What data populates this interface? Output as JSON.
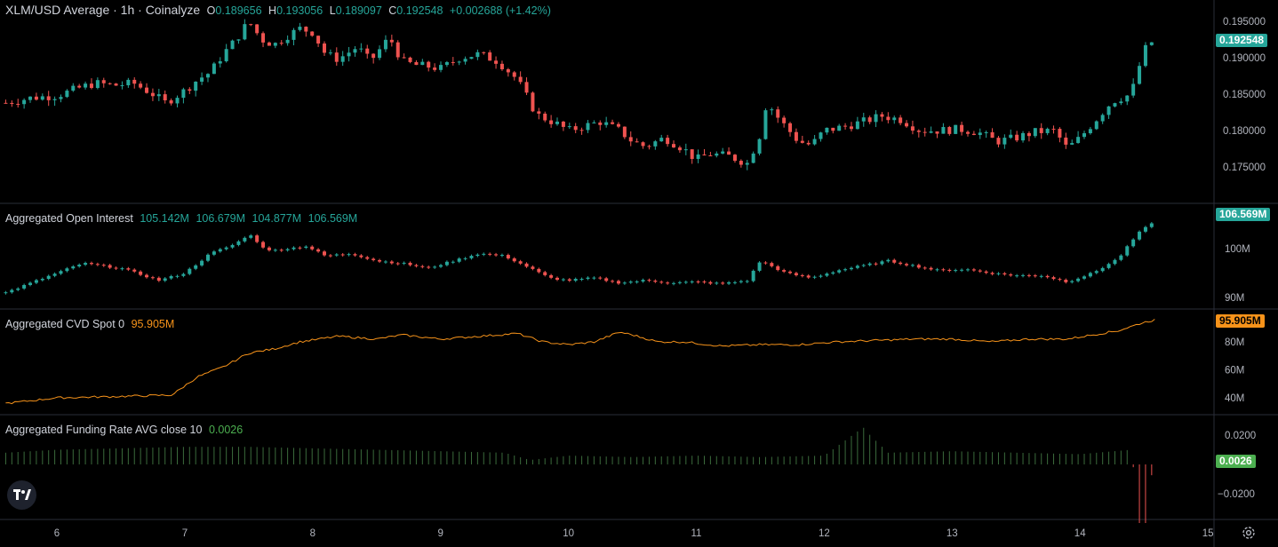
{
  "legend": {
    "main": {
      "title": "XLM/USD Average · 1h · Coinalyze",
      "o_label": "O",
      "o_value": "0.189656",
      "h_label": "H",
      "h_value": "0.193056",
      "l_label": "L",
      "l_value": "0.189097",
      "c_label": "C",
      "c_value": "0.192548",
      "change": "+0.002688 (+1.42%)"
    },
    "oi": {
      "title": "Aggregated Open Interest",
      "v1": "105.142M",
      "v2": "106.679M",
      "v3": "104.877M",
      "v4": "106.569M"
    },
    "cvd": {
      "title": "Aggregated CVD Spot 0",
      "value": "95.905M"
    },
    "funding": {
      "title": "Aggregated Funding Rate AVG close 10",
      "value": "0.0026"
    }
  },
  "badges": {
    "price": "0.192548",
    "oi": "106.569M",
    "cvd": "95.905M",
    "funding": "0.0026"
  },
  "colors": {
    "up": "#26a69a",
    "down": "#ef5350",
    "cvd": "#f7931a",
    "funding_up": "#4caf50",
    "funding_down": "#ef5350",
    "background": "#000000",
    "separator": "#2a2e39"
  },
  "icons": {
    "logo": "tradingview-logo-icon",
    "settings": "gear-icon"
  },
  "chart_data": [
    {
      "type": "candlestick",
      "title": "XLM/USD Average · 1h · Coinalyze",
      "x_ticks": [
        "6",
        "7",
        "8",
        "9",
        "10",
        "11",
        "12",
        "13",
        "14",
        "15"
      ],
      "y_ticks": [
        "0.195000",
        "0.190000",
        "0.185000",
        "0.180000",
        "0.175000"
      ],
      "ylim": [
        0.1715,
        0.1968
      ],
      "series_close": [
        [
          5.6,
          0.1838
        ],
        [
          5.8,
          0.1845
        ],
        [
          6.0,
          0.1848
        ],
        [
          6.2,
          0.186
        ],
        [
          6.3,
          0.1865
        ],
        [
          6.45,
          0.1862
        ],
        [
          6.6,
          0.1865
        ],
        [
          6.75,
          0.185
        ],
        [
          6.85,
          0.1838
        ],
        [
          7.0,
          0.1855
        ],
        [
          7.1,
          0.187
        ],
        [
          7.2,
          0.188
        ],
        [
          7.3,
          0.1905
        ],
        [
          7.4,
          0.1925
        ],
        [
          7.5,
          0.195
        ],
        [
          7.6,
          0.1925
        ],
        [
          7.7,
          0.1918
        ],
        [
          7.8,
          0.193
        ],
        [
          7.9,
          0.194
        ],
        [
          8.0,
          0.1935
        ],
        [
          8.1,
          0.1905
        ],
        [
          8.2,
          0.1898
        ],
        [
          8.35,
          0.1915
        ],
        [
          8.45,
          0.1895
        ],
        [
          8.6,
          0.1928
        ],
        [
          8.7,
          0.1895
        ],
        [
          8.8,
          0.189
        ],
        [
          8.9,
          0.1888
        ],
        [
          9.0,
          0.1885
        ],
        [
          9.15,
          0.19
        ],
        [
          9.3,
          0.1905
        ],
        [
          9.45,
          0.1895
        ],
        [
          9.6,
          0.187
        ],
        [
          9.75,
          0.1822
        ],
        [
          9.9,
          0.181
        ],
        [
          10.0,
          0.18
        ],
        [
          10.1,
          0.1805
        ],
        [
          10.25,
          0.1812
        ],
        [
          10.4,
          0.18
        ],
        [
          10.5,
          0.1785
        ],
        [
          10.6,
          0.1778
        ],
        [
          10.75,
          0.179
        ],
        [
          10.9,
          0.1775
        ],
        [
          11.0,
          0.176
        ],
        [
          11.1,
          0.1768
        ],
        [
          11.25,
          0.1765
        ],
        [
          11.4,
          0.1755
        ],
        [
          11.5,
          0.1795
        ],
        [
          11.55,
          0.184
        ],
        [
          11.65,
          0.1815
        ],
        [
          11.8,
          0.1785
        ],
        [
          11.9,
          0.178
        ],
        [
          12.0,
          0.18
        ],
        [
          12.15,
          0.1805
        ],
        [
          12.3,
          0.1812
        ],
        [
          12.45,
          0.182
        ],
        [
          12.6,
          0.1815
        ],
        [
          12.75,
          0.18
        ],
        [
          12.9,
          0.18
        ],
        [
          13.05,
          0.1802
        ],
        [
          13.2,
          0.1798
        ],
        [
          13.35,
          0.1785
        ],
        [
          13.5,
          0.179
        ],
        [
          13.65,
          0.1798
        ],
        [
          13.8,
          0.18
        ],
        [
          13.9,
          0.1775
        ],
        [
          14.0,
          0.179
        ],
        [
          14.1,
          0.181
        ],
        [
          14.25,
          0.184
        ],
        [
          14.4,
          0.185
        ],
        [
          14.45,
          0.188
        ],
        [
          14.5,
          0.191
        ],
        [
          14.58,
          0.1925
        ]
      ]
    },
    {
      "type": "candlestick",
      "title": "Aggregated Open Interest",
      "y_ticks": [
        "100M",
        "90M"
      ],
      "series_close": [
        [
          5.6,
          0.91
        ],
        [
          5.9,
          0.94
        ],
        [
          6.2,
          0.97
        ],
        [
          6.5,
          0.96
        ],
        [
          6.8,
          0.935
        ],
        [
          7.0,
          0.95
        ],
        [
          7.2,
          0.99
        ],
        [
          7.4,
          1.01
        ],
        [
          7.5,
          1.03
        ],
        [
          7.65,
          0.995
        ],
        [
          7.8,
          1.0
        ],
        [
          7.95,
          1.005
        ],
        [
          8.1,
          0.985
        ],
        [
          8.3,
          0.99
        ],
        [
          8.5,
          0.975
        ],
        [
          8.7,
          0.97
        ],
        [
          8.9,
          0.96
        ],
        [
          9.1,
          0.975
        ],
        [
          9.3,
          0.99
        ],
        [
          9.5,
          0.985
        ],
        [
          9.7,
          0.96
        ],
        [
          9.85,
          0.94
        ],
        [
          10.0,
          0.935
        ],
        [
          10.2,
          0.94
        ],
        [
          10.4,
          0.93
        ],
        [
          10.6,
          0.935
        ],
        [
          10.8,
          0.93
        ],
        [
          11.0,
          0.932
        ],
        [
          11.2,
          0.928
        ],
        [
          11.4,
          0.935
        ],
        [
          11.5,
          0.975
        ],
        [
          11.7,
          0.95
        ],
        [
          11.9,
          0.94
        ],
        [
          12.1,
          0.955
        ],
        [
          12.3,
          0.965
        ],
        [
          12.5,
          0.975
        ],
        [
          12.7,
          0.965
        ],
        [
          12.9,
          0.955
        ],
        [
          13.1,
          0.958
        ],
        [
          13.3,
          0.95
        ],
        [
          13.5,
          0.945
        ],
        [
          13.7,
          0.945
        ],
        [
          13.9,
          0.932
        ],
        [
          14.1,
          0.95
        ],
        [
          14.3,
          0.98
        ],
        [
          14.45,
          1.03
        ],
        [
          14.55,
          1.05
        ],
        [
          14.6,
          1.066
        ]
      ]
    },
    {
      "type": "line",
      "title": "Aggregated CVD Spot 0",
      "y_ticks": [
        "80M",
        "60M",
        "40M"
      ],
      "series_close": [
        [
          5.6,
          36
        ],
        [
          6.0,
          40
        ],
        [
          6.5,
          41
        ],
        [
          6.9,
          42
        ],
        [
          7.1,
          55
        ],
        [
          7.3,
          62
        ],
        [
          7.5,
          72
        ],
        [
          7.7,
          75
        ],
        [
          7.9,
          80
        ],
        [
          8.2,
          84
        ],
        [
          8.5,
          82
        ],
        [
          8.7,
          85
        ],
        [
          9.0,
          82
        ],
        [
          9.3,
          84
        ],
        [
          9.6,
          86
        ],
        [
          9.8,
          80
        ],
        [
          10.0,
          78
        ],
        [
          10.2,
          80
        ],
        [
          10.4,
          87
        ],
        [
          10.5,
          85
        ],
        [
          10.7,
          80
        ],
        [
          10.9,
          80
        ],
        [
          11.2,
          77
        ],
        [
          11.5,
          78
        ],
        [
          11.8,
          78
        ],
        [
          12.1,
          80
        ],
        [
          12.4,
          81
        ],
        [
          12.7,
          82
        ],
        [
          13.0,
          82
        ],
        [
          13.3,
          80
        ],
        [
          13.6,
          82
        ],
        [
          13.9,
          82
        ],
        [
          14.1,
          85
        ],
        [
          14.3,
          88
        ],
        [
          14.5,
          94
        ],
        [
          14.6,
          95.905
        ]
      ]
    },
    {
      "type": "bar",
      "title": "Aggregated Funding Rate AVG close 10",
      "y_ticks": [
        "0.0200",
        "−0.0200"
      ],
      "series_close": [
        [
          5.6,
          0.008
        ],
        [
          6.0,
          0.01
        ],
        [
          6.5,
          0.011
        ],
        [
          7.0,
          0.012
        ],
        [
          7.5,
          0.012
        ],
        [
          8.0,
          0.011
        ],
        [
          8.5,
          0.01
        ],
        [
          9.0,
          0.009
        ],
        [
          9.5,
          0.008
        ],
        [
          9.7,
          0.003
        ],
        [
          10.0,
          0.006
        ],
        [
          10.5,
          0.005
        ],
        [
          11.0,
          0.006
        ],
        [
          11.5,
          0.005
        ],
        [
          12.0,
          0.006
        ],
        [
          12.3,
          0.025
        ],
        [
          12.5,
          0.008
        ],
        [
          13.0,
          0.009
        ],
        [
          13.5,
          0.008
        ],
        [
          14.0,
          0.007
        ],
        [
          14.4,
          0.01
        ],
        [
          14.47,
          -0.04
        ],
        [
          14.55,
          -0.01
        ],
        [
          14.6,
          0.0026
        ]
      ]
    }
  ]
}
